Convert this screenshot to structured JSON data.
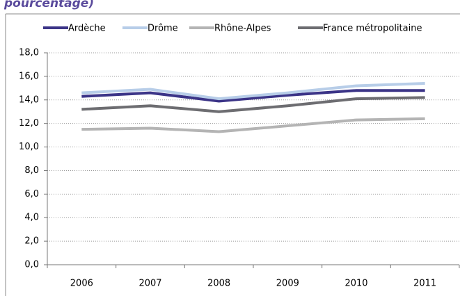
{
  "chart_data": {
    "type": "line",
    "title": "pourcentage)",
    "categories": [
      "2006",
      "2007",
      "2008",
      "2009",
      "2010",
      "2011"
    ],
    "series": [
      {
        "name": "Ardèche",
        "color": "#3b3487",
        "values": [
          14.3,
          14.6,
          13.9,
          14.4,
          14.8,
          14.8
        ]
      },
      {
        "name": "Drôme",
        "color": "#b7cde8",
        "values": [
          14.6,
          14.9,
          14.1,
          14.6,
          15.2,
          15.4
        ]
      },
      {
        "name": "Rhône-Alpes",
        "color": "#b4b4b4",
        "values": [
          11.5,
          11.6,
          11.3,
          11.8,
          12.3,
          12.4
        ]
      },
      {
        "name": "France métropolitaine",
        "color": "#6d6d71",
        "values": [
          13.2,
          13.5,
          13.0,
          13.5,
          14.1,
          14.2
        ]
      }
    ],
    "ylim": [
      0,
      18
    ],
    "yticks": [
      {
        "value": 0,
        "label": "0,0"
      },
      {
        "value": 2,
        "label": "2,0"
      },
      {
        "value": 4,
        "label": "4,0"
      },
      {
        "value": 6,
        "label": "6,0"
      },
      {
        "value": 8,
        "label": "8,0"
      },
      {
        "value": 10,
        "label": "10,0"
      },
      {
        "value": 12,
        "label": "12,0"
      },
      {
        "value": 14,
        "label": "14,0"
      },
      {
        "value": 16,
        "label": "16,0"
      },
      {
        "value": 18,
        "label": "18,0"
      }
    ],
    "grid": true,
    "legend": "top"
  }
}
